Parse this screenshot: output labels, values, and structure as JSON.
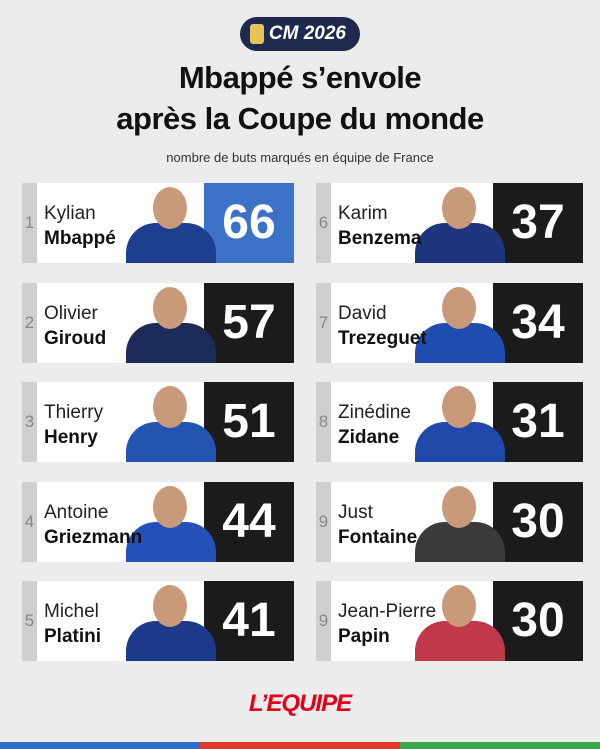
{
  "badge": "CM 2026",
  "header": {
    "title_line1": "Mbappé s’envole",
    "title_line2": "après la Coupe du monde",
    "subtitle": "nombre de buts marqués en équipe de France"
  },
  "players": [
    {
      "rank": "1",
      "first": "Kylian",
      "last": "Mbappé",
      "goals": 66
    },
    {
      "rank": "2",
      "first": "Olivier",
      "last": "Giroud",
      "goals": 57
    },
    {
      "rank": "3",
      "first": "Thierry",
      "last": "Henry",
      "goals": 51
    },
    {
      "rank": "4",
      "first": "Antoine",
      "last": "Griezmann",
      "goals": 44
    },
    {
      "rank": "5",
      "first": "Michel",
      "last": "Platini",
      "goals": 41
    },
    {
      "rank": "6",
      "first": "Karim",
      "last": "Benzema",
      "goals": 37
    },
    {
      "rank": "7",
      "first": "David",
      "last": "Trezeguet",
      "goals": 34
    },
    {
      "rank": "8",
      "first": "Zinédine",
      "last": "Zidane",
      "goals": 31
    },
    {
      "rank": "9",
      "first": "Just",
      "last": "Fontaine",
      "goals": 30
    },
    {
      "rank": "9",
      "first": "Jean-Pierre",
      "last": "Papin",
      "goals": 30
    }
  ],
  "footer": {
    "logo": "L’EQUIPE"
  }
}
